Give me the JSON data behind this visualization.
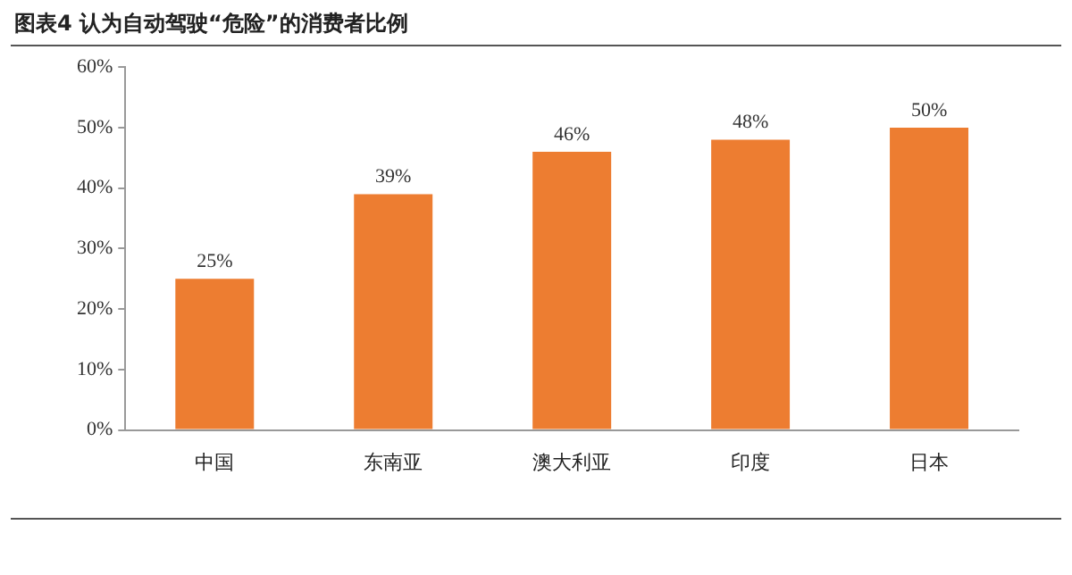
{
  "chart_data": {
    "type": "bar",
    "title": "图表4 认为自动驾驶“危险”的消费者比例",
    "categories": [
      "中国",
      "东南亚",
      "澳大利亚",
      "印度",
      "日本"
    ],
    "values": [
      25,
      39,
      46,
      48,
      50
    ],
    "color": "#ed7d31",
    "value_labels": [
      "25%",
      "39%",
      "46%",
      "48%",
      "50%"
    ],
    "ylim": [
      0,
      60
    ],
    "yticks": [
      {
        "value": 0,
        "label": "0%"
      },
      {
        "value": 10,
        "label": "10%"
      },
      {
        "value": 20,
        "label": "20%"
      },
      {
        "value": 30,
        "label": "30%"
      },
      {
        "value": 40,
        "label": "40%"
      },
      {
        "value": 50,
        "label": "50%"
      },
      {
        "value": 60,
        "label": "60%"
      }
    ],
    "grid": false,
    "legend": false
  }
}
